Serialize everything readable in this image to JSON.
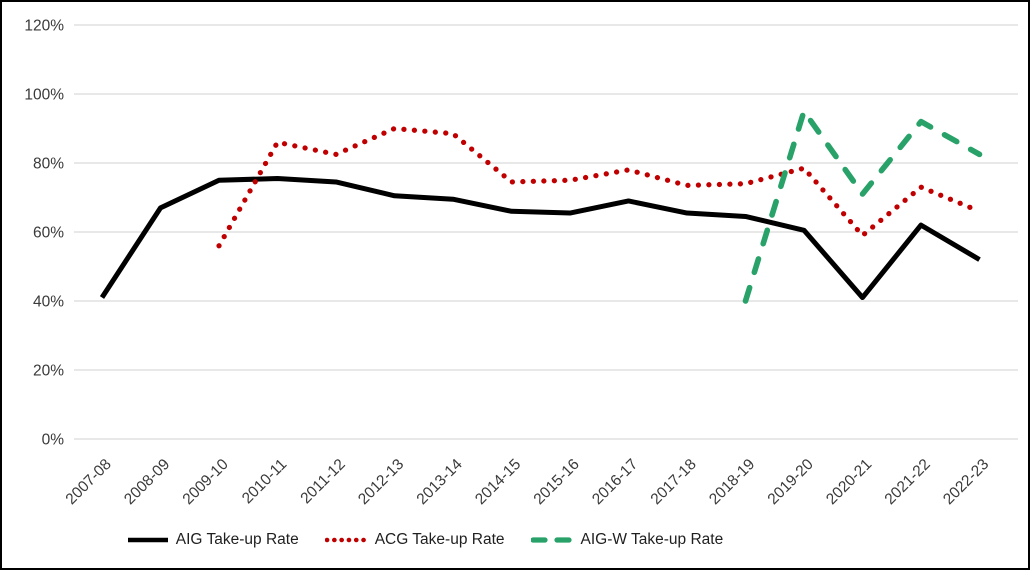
{
  "figure": {
    "background": "#ffffff",
    "border_color": "#000000",
    "gridline_color": "#d9d9d9",
    "text_color": "#3a3a3a"
  },
  "chart_data": {
    "type": "line",
    "title": "",
    "xlabel": "",
    "ylabel": "",
    "grid": true,
    "legend_position": "bottom",
    "categories": [
      "2007-08",
      "2008-09",
      "2009-10",
      "2010-11",
      "2011-12",
      "2012-13",
      "2013-14",
      "2014-15",
      "2015-16",
      "2016-17",
      "2017-18",
      "2018-19",
      "2019-20",
      "2020-21",
      "2021-22",
      "2022-23"
    ],
    "y_axis": {
      "min": 0,
      "max": 120,
      "step": 20,
      "unit": "%",
      "tick_labels": [
        "0%",
        "20%",
        "40%",
        "60%",
        "80%",
        "100%",
        "120%"
      ]
    },
    "series": [
      {
        "name": "AIG Take-up Rate",
        "color": "#000000",
        "line_style": "solid",
        "values": [
          41,
          67,
          75,
          75.5,
          74.5,
          70.5,
          69.5,
          66,
          65.5,
          69,
          65.5,
          64.5,
          60.5,
          41,
          62,
          52
        ]
      },
      {
        "name": "ACG Take-up Rate",
        "color": "#c00000",
        "line_style": "dotted",
        "values": [
          null,
          null,
          56,
          86,
          82.5,
          90,
          88.5,
          74.5,
          75,
          78,
          73.5,
          74,
          78.5,
          59,
          73,
          66
        ]
      },
      {
        "name": "AIG-W Take-up Rate",
        "color": "#28a269",
        "line_style": "dashed",
        "values": [
          null,
          null,
          null,
          null,
          null,
          null,
          null,
          null,
          null,
          null,
          null,
          40,
          95,
          71,
          92,
          82.5
        ]
      }
    ]
  }
}
